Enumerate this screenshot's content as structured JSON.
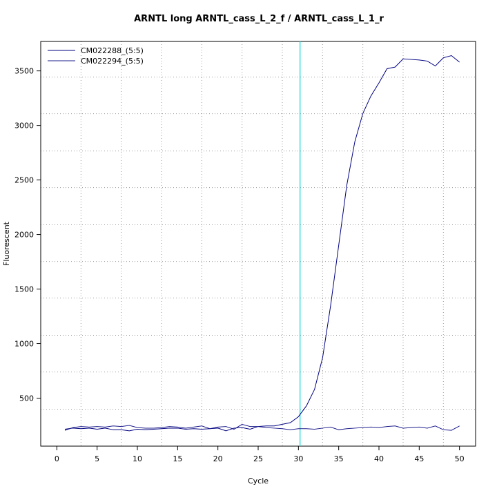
{
  "chart_data": {
    "type": "line",
    "title": "ARNTL long ARNTL_cass_L_2_f / ARNTL_cass_L_1_r",
    "x_label": "Cycle",
    "y_label": "Fluorescent",
    "x": [
      1,
      2,
      3,
      4,
      5,
      6,
      7,
      8,
      9,
      10,
      11,
      12,
      13,
      14,
      15,
      16,
      17,
      18,
      19,
      20,
      21,
      22,
      23,
      24,
      25,
      26,
      27,
      28,
      29,
      30,
      31,
      32,
      33,
      34,
      35,
      36,
      37,
      38,
      39,
      40,
      41,
      42,
      43,
      44,
      45,
      46,
      47,
      48,
      49,
      50
    ],
    "series": [
      {
        "name": "CM022288_(5:5)",
        "color": "#000080",
        "values": [
          215,
          225,
          220,
          225,
          215,
          225,
          210,
          210,
          200,
          215,
          210,
          215,
          220,
          225,
          225,
          215,
          220,
          215,
          220,
          225,
          200,
          225,
          230,
          215,
          240,
          245,
          245,
          260,
          275,
          330,
          430,
          580,
          870,
          1350,
          1900,
          2450,
          2850,
          3110,
          3270,
          3390,
          3520,
          3535,
          3610,
          3605,
          3600,
          3590,
          3545,
          3620,
          3640,
          3580
        ]
      },
      {
        "name": "CM022294_(5:5)",
        "color": "#1c1c8c",
        "values": [
          205,
          230,
          240,
          235,
          240,
          235,
          245,
          240,
          250,
          230,
          225,
          225,
          230,
          240,
          235,
          225,
          235,
          245,
          220,
          235,
          240,
          215,
          260,
          240,
          240,
          230,
          225,
          220,
          210,
          220,
          220,
          215,
          225,
          235,
          210,
          220,
          225,
          230,
          235,
          230,
          240,
          245,
          225,
          230,
          235,
          225,
          245,
          210,
          205,
          245
        ]
      }
    ],
    "xlim": [
      -2,
      52
    ],
    "ylim": [
      60,
      3770
    ],
    "xticks": [
      0,
      5,
      10,
      15,
      20,
      25,
      30,
      35,
      40,
      45,
      50
    ],
    "yticks": [
      500,
      1000,
      1500,
      2000,
      2500,
      3000,
      3500
    ],
    "xgrid": [
      3,
      8,
      13,
      18,
      23,
      28,
      33,
      38,
      43,
      48
    ],
    "ygrid": [
      399,
      740,
      1076,
      1418,
      1753,
      2089,
      2430,
      2766,
      3108,
      3443
    ],
    "threshold_x": 30.2,
    "threshold_color": "#40e0e0",
    "legend": "top-left"
  }
}
